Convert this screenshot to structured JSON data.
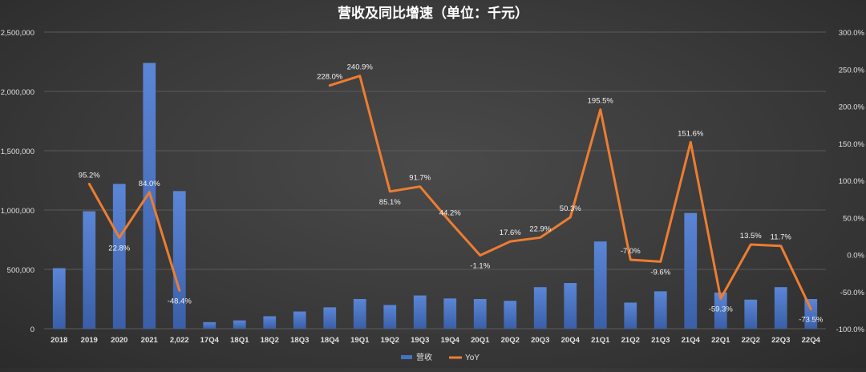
{
  "chart_data": {
    "type": "bar",
    "title": "营收及同比增速（单位：千元）",
    "categories": [
      "2018",
      "2019",
      "2020",
      "2021",
      "2,022",
      "17Q4",
      "18Q1",
      "18Q2",
      "18Q3",
      "18Q4",
      "19Q1",
      "19Q2",
      "19Q3",
      "19Q4",
      "20Q1",
      "20Q2",
      "20Q3",
      "20Q4",
      "21Q1",
      "21Q2",
      "21Q3",
      "21Q4",
      "22Q1",
      "22Q2",
      "22Q3",
      "22Q4"
    ],
    "series": [
      {
        "name": "营收",
        "type": "bar",
        "axis": "left",
        "color": "#4472c4",
        "values": [
          510000,
          990000,
          1220000,
          2240000,
          1160000,
          55000,
          70000,
          105000,
          145000,
          180000,
          250000,
          200000,
          280000,
          255000,
          250000,
          235000,
          350000,
          385000,
          735000,
          220000,
          315000,
          975000,
          305000,
          245000,
          350000,
          250000
        ]
      },
      {
        "name": "YoY",
        "type": "line",
        "axis": "right",
        "color": "#ed7d31",
        "values": [
          null,
          95.2,
          22.8,
          84.0,
          -48.4,
          null,
          null,
          null,
          null,
          228.0,
          240.9,
          85.1,
          91.7,
          44.2,
          -1.1,
          17.6,
          22.9,
          50.3,
          195.5,
          -7.0,
          -9.6,
          151.6,
          -59.3,
          13.5,
          11.7,
          -73.5
        ],
        "labels": [
          "",
          "95.2%",
          "22.8%",
          "84.0%",
          "-48.4%",
          "",
          "",
          "",
          "",
          "228.0%",
          "240.9%",
          "85.1%",
          "91.7%",
          "44.2%",
          "-1.1%",
          "17.6%",
          "22.9%",
          "50.3%",
          "195.5%",
          "-7.0%",
          "-9.6%",
          "151.6%",
          "-59.3%",
          "13.5%",
          "11.7%",
          "-73.5%"
        ]
      }
    ],
    "y_left": {
      "min": 0,
      "max": 2500000,
      "ticks": [
        0,
        500000,
        1000000,
        1500000,
        2000000,
        2500000
      ],
      "tick_labels": [
        "0",
        "500,000",
        "1,000,000",
        "1,500,000",
        "2,000,000",
        "2,500,000"
      ]
    },
    "y_right": {
      "min": -100,
      "max": 300,
      "ticks": [
        -100,
        -50,
        0,
        50,
        100,
        150,
        200,
        250,
        300
      ],
      "tick_labels": [
        "-100.0%",
        "-50.0%",
        "0.0%",
        "50.0%",
        "100.0%",
        "150.0%",
        "200.0%",
        "250.0%",
        "300.0%"
      ]
    },
    "grid": true,
    "legend": {
      "position": "bottom",
      "items": [
        "营收",
        "YoY"
      ]
    },
    "colors": {
      "text": "#e0e0e0",
      "grid": "#5a5a5a",
      "title": "#ffffff"
    }
  }
}
